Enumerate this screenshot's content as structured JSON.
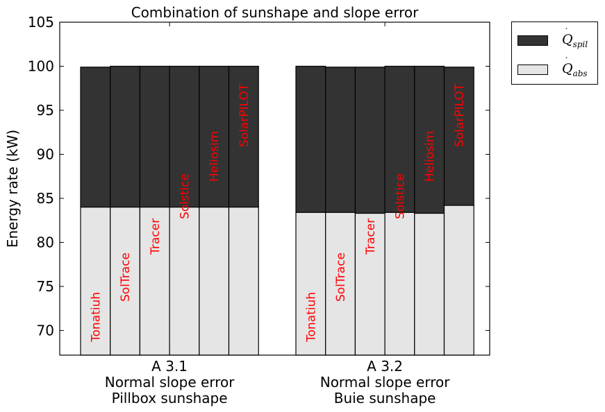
{
  "chart_data": {
    "type": "bar",
    "title": "Combination of sunshape and slope error",
    "ylabel": "Energy rate (kW)",
    "xlabel": "",
    "ylim": [
      67.2,
      105
    ],
    "yticks": [
      70,
      75,
      80,
      85,
      90,
      95,
      100,
      105
    ],
    "grid": false,
    "legend_position": "outside-right",
    "groups": [
      {
        "label_lines": [
          "A 3.1",
          "Normal slope error",
          "Pillbox sunshape"
        ],
        "bars": [
          {
            "name": "Tonatiuh",
            "abs": 84.0,
            "spil": 15.9
          },
          {
            "name": "SolTrace",
            "abs": 84.0,
            "spil": 16.0
          },
          {
            "name": "Tracer",
            "abs": 84.0,
            "spil": 16.0
          },
          {
            "name": "Solstice",
            "abs": 84.0,
            "spil": 16.0
          },
          {
            "name": "Heliosim",
            "abs": 84.0,
            "spil": 16.0
          },
          {
            "name": "SolarPILOT",
            "abs": 84.0,
            "spil": 16.0
          }
        ]
      },
      {
        "label_lines": [
          "A 3.2",
          "Normal slope error",
          "Buie sunshape"
        ],
        "bars": [
          {
            "name": "Tonatiuh",
            "abs": 83.4,
            "spil": 16.6
          },
          {
            "name": "SolTrace",
            "abs": 83.4,
            "spil": 16.5
          },
          {
            "name": "Tracer",
            "abs": 83.3,
            "spil": 16.6
          },
          {
            "name": "Solstice",
            "abs": 83.4,
            "spil": 16.6
          },
          {
            "name": "Heliosim",
            "abs": 83.3,
            "spil": 16.7
          },
          {
            "name": "SolarPILOT",
            "abs": 84.2,
            "spil": 15.7
          }
        ]
      }
    ],
    "series": [
      {
        "name": "Q̇_spil",
        "symbol": "Q",
        "subscript": "spil",
        "color": "#333333"
      },
      {
        "name": "Q̇_abs",
        "symbol": "Q",
        "subscript": "abs",
        "color": "#e5e5e5"
      }
    ],
    "bar_label_color": "#ff0000"
  }
}
